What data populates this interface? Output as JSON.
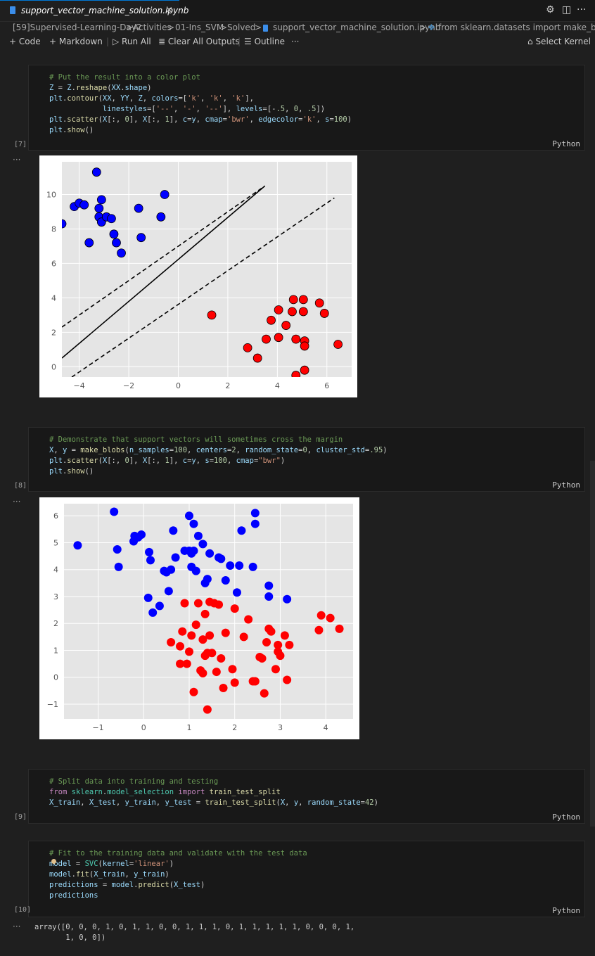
{
  "tab": {
    "title": "support_vector_machine_solution.ipynb",
    "close": "×"
  },
  "breadcrumb": [
    "[59]Supervised-Learning-Day2",
    ">",
    "Activities",
    ">",
    "01-Ins_SVM",
    ">",
    "Solved",
    ">",
    "support_vector_machine_solution.ipynb",
    ">",
    "from sklearn.datasets import make_blobs"
  ],
  "toolbar": {
    "code": "Code",
    "markdown": "Markdown",
    "run_all": "Run All",
    "clear_all": "Clear All Outputs",
    "outline": "Outline",
    "more": "···",
    "select_kernel": "Select Kernel"
  },
  "cells": [
    {
      "exec": "[7]",
      "lang": "Python"
    },
    {
      "exec": "[8]",
      "lang": "Python"
    },
    {
      "exec": "[9]",
      "lang": "Python"
    },
    {
      "exec": "[10]",
      "lang": "Python"
    }
  ],
  "out_dots": "···",
  "output_text": {
    "line1": "array([0, 0, 0, 1, 0, 1, 1, 0, 0, 1, 1, 1, 0, 1, 1, 1, 1, 1, 0, 0, 0, 1,",
    "line2": "       1, 0, 0])"
  },
  "chart_data": [
    {
      "type": "scatter",
      "xlim": [
        -4.7,
        7.0
      ],
      "ylim": [
        -0.6,
        11.9
      ],
      "xticks": [
        -4,
        -2,
        0,
        2,
        4,
        6
      ],
      "yticks": [
        0,
        2,
        4,
        6,
        8,
        10
      ],
      "grid": true,
      "lines": [
        {
          "x": [
            -4.7,
            3.5
          ],
          "y": [
            0.5,
            10.5
          ],
          "style": "solid"
        },
        {
          "x": [
            -4.7,
            3.4
          ],
          "y": [
            2.3,
            10.4
          ],
          "style": "dashed"
        },
        {
          "x": [
            -4.3,
            6.3
          ],
          "y": [
            -0.6,
            9.8
          ],
          "style": "dashed"
        }
      ],
      "series": [
        {
          "color": "#0000ff",
          "x": [
            -4.7,
            -4.2,
            -4.0,
            -3.8,
            -3.6,
            -3.3,
            -3.2,
            -3.2,
            -3.1,
            -3.1,
            -2.9,
            -2.7,
            -2.6,
            -2.5,
            -2.3,
            -1.6,
            -1.5,
            -0.7,
            -0.55
          ],
          "y": [
            8.3,
            9.3,
            9.5,
            9.4,
            7.2,
            11.3,
            8.7,
            9.2,
            9.7,
            8.4,
            8.7,
            8.6,
            7.7,
            7.2,
            6.6,
            9.2,
            7.5,
            8.7,
            10.0
          ]
        },
        {
          "color": "#ff0000",
          "x": [
            1.35,
            2.8,
            3.2,
            3.55,
            3.75,
            4.05,
            4.05,
            4.35,
            4.6,
            4.65,
            4.75,
            4.75,
            5.05,
            5.05,
            5.1,
            5.1,
            5.1,
            5.7,
            5.9,
            6.45
          ],
          "y": [
            3.0,
            1.1,
            0.5,
            1.6,
            2.7,
            3.3,
            1.7,
            2.4,
            3.2,
            3.9,
            1.6,
            -0.5,
            3.9,
            3.2,
            1.5,
            1.2,
            -0.2,
            3.7,
            3.1,
            1.3
          ]
        }
      ]
    },
    {
      "type": "scatter",
      "xlim": [
        -1.75,
        4.6
      ],
      "ylim": [
        -1.55,
        6.45
      ],
      "xticks": [
        -1,
        0,
        1,
        2,
        3,
        4
      ],
      "yticks": [
        -1,
        0,
        1,
        2,
        3,
        4,
        5,
        6
      ],
      "grid": true,
      "series": [
        {
          "color": "#0000ff",
          "x": [
            -1.45,
            -0.65,
            -0.58,
            -0.55,
            -0.22,
            -0.2,
            -0.12,
            -0.05,
            0.1,
            0.12,
            0.15,
            0.2,
            0.35,
            0.45,
            0.5,
            0.55,
            0.6,
            0.65,
            0.7,
            0.9,
            1.0,
            1.0,
            1.05,
            1.05,
            1.1,
            1.1,
            1.15,
            1.2,
            1.3,
            1.35,
            1.4,
            1.45,
            1.65,
            1.7,
            1.8,
            1.9,
            2.05,
            2.1,
            2.15,
            2.4,
            2.45,
            2.45,
            2.75,
            2.75,
            3.15
          ],
          "y": [
            4.9,
            6.15,
            4.75,
            4.1,
            5.05,
            5.25,
            5.2,
            5.3,
            2.95,
            4.65,
            4.35,
            2.4,
            2.65,
            3.95,
            3.9,
            3.2,
            4.0,
            5.45,
            4.45,
            4.7,
            6.0,
            4.7,
            4.1,
            4.6,
            4.7,
            5.7,
            3.95,
            5.25,
            4.95,
            3.5,
            3.65,
            4.6,
            4.45,
            4.4,
            3.6,
            4.15,
            3.15,
            4.15,
            5.45,
            4.1,
            6.1,
            5.7,
            3.4,
            3.0,
            2.9
          ]
        },
        {
          "color": "#ff0000",
          "x": [
            0.6,
            0.8,
            0.8,
            0.85,
            0.9,
            0.95,
            1.0,
            1.05,
            1.1,
            1.15,
            1.2,
            1.25,
            1.3,
            1.3,
            1.35,
            1.35,
            1.4,
            1.4,
            1.45,
            1.45,
            1.5,
            1.55,
            1.6,
            1.65,
            1.7,
            1.75,
            1.8,
            1.95,
            2.0,
            2.0,
            2.2,
            2.3,
            2.4,
            2.45,
            2.55,
            2.6,
            2.65,
            2.7,
            2.75,
            2.8,
            2.9,
            2.95,
            2.95,
            3.0,
            3.1,
            3.15,
            3.2,
            3.85,
            3.9,
            4.1,
            4.3
          ],
          "y": [
            1.3,
            0.5,
            1.15,
            1.7,
            2.75,
            0.5,
            0.95,
            1.55,
            -0.55,
            1.95,
            2.75,
            0.25,
            0.15,
            1.4,
            2.35,
            0.8,
            0.9,
            -1.2,
            1.55,
            2.8,
            0.9,
            2.75,
            0.2,
            2.7,
            0.7,
            -0.4,
            1.65,
            0.3,
            2.55,
            -0.2,
            1.5,
            2.15,
            -0.15,
            -0.15,
            0.75,
            0.7,
            -0.6,
            1.3,
            1.8,
            1.7,
            0.3,
            0.95,
            1.2,
            0.8,
            1.55,
            -0.1,
            1.2,
            1.75,
            2.3,
            2.2,
            1.8
          ]
        }
      ]
    }
  ]
}
